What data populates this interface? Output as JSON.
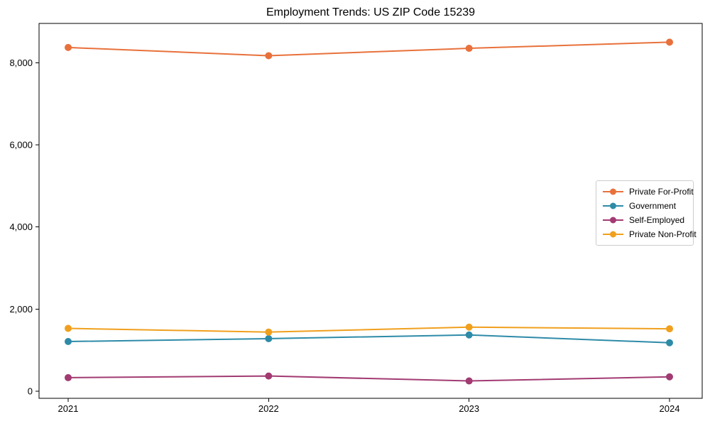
{
  "chart_data": {
    "type": "line",
    "title": "Employment Trends: US ZIP Code 15239",
    "categories": [
      "2021",
      "2022",
      "2023",
      "2024"
    ],
    "series": [
      {
        "name": "Private For-Profit",
        "color": "#E8713B",
        "values": [
          8370,
          8170,
          8350,
          8500
        ]
      },
      {
        "name": "Government",
        "color": "#2E8BA8",
        "values": [
          1210,
          1280,
          1370,
          1180
        ]
      },
      {
        "name": "Self-Employed",
        "color": "#A23B72",
        "values": [
          330,
          370,
          250,
          350
        ]
      },
      {
        "name": "Private Non-Profit",
        "color": "#F0A01E",
        "values": [
          1530,
          1440,
          1560,
          1520
        ]
      }
    ],
    "xlabel": "",
    "ylabel": "",
    "ylim": [
      0,
      8950
    ],
    "yticks": [
      0,
      2000,
      4000,
      6000,
      8000
    ],
    "ytick_labels": [
      "0",
      "2,000",
      "4,000",
      "6,000",
      "8,000"
    ],
    "grid": false,
    "legend_position": "center right",
    "marker": "circle",
    "line_width": 2,
    "axis_color": "#000000"
  }
}
